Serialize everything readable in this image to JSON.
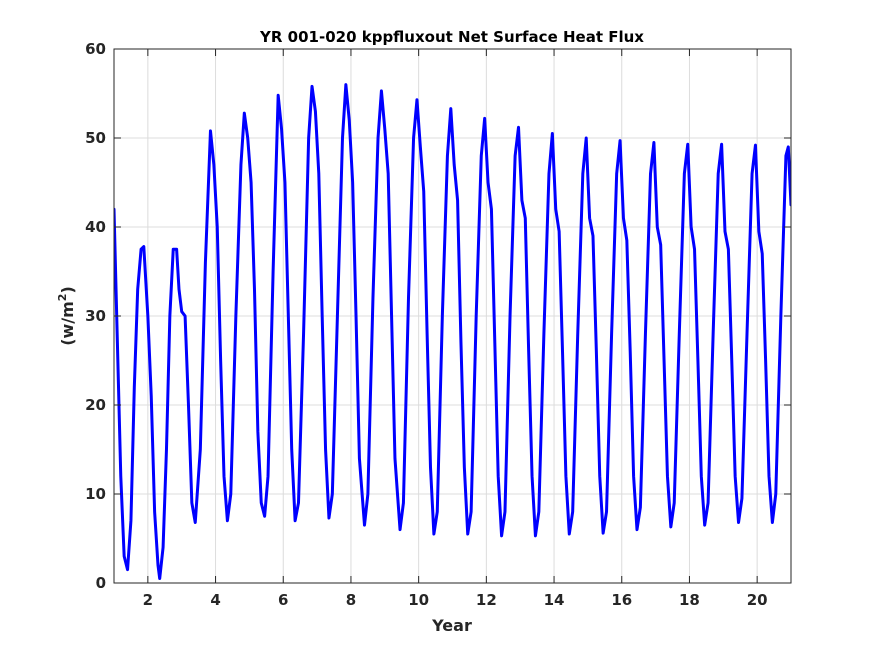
{
  "chart_data": {
    "type": "line",
    "title": "YR 001-020 kppfluxout Net Surface Heat Flux",
    "xlabel": "Year",
    "ylabel": "(w/m",
    "ylabel_superscript": "2",
    "ylabel_close": ")",
    "xlim": [
      1,
      21
    ],
    "ylim": [
      0,
      60
    ],
    "xticks": [
      2,
      4,
      6,
      8,
      10,
      12,
      14,
      16,
      18,
      20
    ],
    "yticks": [
      0,
      10,
      20,
      30,
      40,
      50,
      60
    ],
    "xtick_labels": [
      "2",
      "4",
      "6",
      "8",
      "10",
      "12",
      "14",
      "16",
      "18",
      "20"
    ],
    "ytick_labels": [
      "0",
      "10",
      "20",
      "30",
      "40",
      "50",
      "60"
    ],
    "grid": true,
    "series": [
      {
        "color": "#0000ff",
        "points": [
          [
            1.0,
            42.0
          ],
          [
            1.1,
            27.0
          ],
          [
            1.2,
            12.0
          ],
          [
            1.3,
            3.0
          ],
          [
            1.4,
            1.5
          ],
          [
            1.5,
            7.0
          ],
          [
            1.6,
            22.0
          ],
          [
            1.7,
            33.0
          ],
          [
            1.8,
            37.5
          ],
          [
            1.88,
            37.8
          ],
          [
            2.0,
            30.0
          ],
          [
            2.1,
            21.0
          ],
          [
            2.2,
            8.0
          ],
          [
            2.3,
            2.0
          ],
          [
            2.35,
            0.5
          ],
          [
            2.45,
            4.0
          ],
          [
            2.55,
            15.0
          ],
          [
            2.65,
            30.0
          ],
          [
            2.75,
            37.5
          ],
          [
            2.85,
            37.5
          ],
          [
            2.92,
            33.0
          ],
          [
            3.0,
            30.5
          ],
          [
            3.1,
            30.0
          ],
          [
            3.2,
            20.0
          ],
          [
            3.3,
            9.0
          ],
          [
            3.4,
            6.8
          ],
          [
            3.55,
            15.0
          ],
          [
            3.7,
            36.0
          ],
          [
            3.85,
            50.8
          ],
          [
            3.95,
            47.0
          ],
          [
            4.05,
            40.0
          ],
          [
            4.15,
            25.0
          ],
          [
            4.25,
            12.0
          ],
          [
            4.35,
            7.0
          ],
          [
            4.45,
            10.0
          ],
          [
            4.6,
            30.0
          ],
          [
            4.75,
            47.0
          ],
          [
            4.85,
            52.8
          ],
          [
            4.95,
            50.0
          ],
          [
            5.05,
            45.0
          ],
          [
            5.15,
            33.0
          ],
          [
            5.25,
            17.0
          ],
          [
            5.35,
            9.0
          ],
          [
            5.45,
            7.5
          ],
          [
            5.55,
            12.0
          ],
          [
            5.7,
            35.0
          ],
          [
            5.85,
            54.8
          ],
          [
            5.95,
            51.0
          ],
          [
            6.05,
            45.0
          ],
          [
            6.15,
            30.0
          ],
          [
            6.25,
            15.0
          ],
          [
            6.35,
            7.0
          ],
          [
            6.45,
            9.0
          ],
          [
            6.6,
            28.0
          ],
          [
            6.75,
            50.0
          ],
          [
            6.85,
            55.8
          ],
          [
            6.95,
            53.0
          ],
          [
            7.05,
            46.0
          ],
          [
            7.15,
            30.0
          ],
          [
            7.25,
            15.0
          ],
          [
            7.35,
            7.3
          ],
          [
            7.45,
            10.0
          ],
          [
            7.6,
            30.0
          ],
          [
            7.75,
            50.0
          ],
          [
            7.85,
            56.0
          ],
          [
            7.95,
            52.0
          ],
          [
            8.05,
            45.0
          ],
          [
            8.15,
            30.0
          ],
          [
            8.25,
            14.0
          ],
          [
            8.4,
            6.5
          ],
          [
            8.5,
            10.0
          ],
          [
            8.65,
            32.0
          ],
          [
            8.8,
            50.0
          ],
          [
            8.9,
            55.3
          ],
          [
            9.0,
            51.0
          ],
          [
            9.1,
            46.0
          ],
          [
            9.2,
            30.0
          ],
          [
            9.3,
            14.0
          ],
          [
            9.45,
            6.0
          ],
          [
            9.55,
            9.0
          ],
          [
            9.7,
            32.0
          ],
          [
            9.85,
            50.0
          ],
          [
            9.95,
            54.3
          ],
          [
            10.05,
            49.0
          ],
          [
            10.15,
            44.0
          ],
          [
            10.25,
            28.0
          ],
          [
            10.35,
            13.0
          ],
          [
            10.45,
            5.5
          ],
          [
            10.55,
            8.0
          ],
          [
            10.7,
            30.0
          ],
          [
            10.85,
            48.0
          ],
          [
            10.95,
            53.3
          ],
          [
            11.05,
            47.0
          ],
          [
            11.15,
            43.0
          ],
          [
            11.25,
            27.0
          ],
          [
            11.35,
            13.0
          ],
          [
            11.45,
            5.5
          ],
          [
            11.55,
            8.0
          ],
          [
            11.7,
            30.0
          ],
          [
            11.85,
            48.0
          ],
          [
            11.95,
            52.2
          ],
          [
            12.05,
            45.0
          ],
          [
            12.15,
            42.0
          ],
          [
            12.25,
            27.0
          ],
          [
            12.35,
            12.0
          ],
          [
            12.45,
            5.3
          ],
          [
            12.55,
            8.0
          ],
          [
            12.7,
            30.0
          ],
          [
            12.85,
            48.0
          ],
          [
            12.95,
            51.2
          ],
          [
            13.05,
            43.0
          ],
          [
            13.15,
            41.0
          ],
          [
            13.25,
            26.0
          ],
          [
            13.35,
            12.0
          ],
          [
            13.45,
            5.3
          ],
          [
            13.55,
            8.0
          ],
          [
            13.7,
            28.0
          ],
          [
            13.85,
            46.0
          ],
          [
            13.95,
            50.5
          ],
          [
            14.05,
            42.0
          ],
          [
            14.15,
            39.5
          ],
          [
            14.25,
            26.0
          ],
          [
            14.35,
            12.0
          ],
          [
            14.45,
            5.5
          ],
          [
            14.55,
            8.0
          ],
          [
            14.7,
            28.0
          ],
          [
            14.85,
            46.0
          ],
          [
            14.95,
            50.0
          ],
          [
            15.05,
            41.0
          ],
          [
            15.15,
            39.0
          ],
          [
            15.25,
            26.0
          ],
          [
            15.35,
            12.0
          ],
          [
            15.45,
            5.6
          ],
          [
            15.55,
            8.0
          ],
          [
            15.7,
            28.0
          ],
          [
            15.85,
            46.0
          ],
          [
            15.95,
            49.7
          ],
          [
            16.05,
            41.0
          ],
          [
            16.15,
            38.5
          ],
          [
            16.25,
            26.0
          ],
          [
            16.35,
            12.0
          ],
          [
            16.45,
            6.0
          ],
          [
            16.55,
            8.5
          ],
          [
            16.7,
            28.0
          ],
          [
            16.85,
            46.0
          ],
          [
            16.95,
            49.5
          ],
          [
            17.05,
            40.0
          ],
          [
            17.15,
            38.0
          ],
          [
            17.25,
            25.0
          ],
          [
            17.35,
            12.0
          ],
          [
            17.45,
            6.3
          ],
          [
            17.55,
            9.0
          ],
          [
            17.7,
            28.0
          ],
          [
            17.85,
            46.0
          ],
          [
            17.95,
            49.3
          ],
          [
            18.05,
            40.0
          ],
          [
            18.15,
            37.5
          ],
          [
            18.25,
            25.0
          ],
          [
            18.35,
            12.0
          ],
          [
            18.45,
            6.5
          ],
          [
            18.55,
            9.0
          ],
          [
            18.7,
            28.0
          ],
          [
            18.85,
            46.0
          ],
          [
            18.95,
            49.3
          ],
          [
            19.05,
            39.5
          ],
          [
            19.15,
            37.5
          ],
          [
            19.25,
            25.0
          ],
          [
            19.35,
            12.0
          ],
          [
            19.45,
            6.8
          ],
          [
            19.55,
            9.5
          ],
          [
            19.7,
            28.0
          ],
          [
            19.85,
            46.0
          ],
          [
            19.95,
            49.2
          ],
          [
            20.05,
            39.5
          ],
          [
            20.15,
            37.0
          ],
          [
            20.25,
            25.0
          ],
          [
            20.35,
            12.0
          ],
          [
            20.45,
            6.8
          ],
          [
            20.55,
            10.0
          ],
          [
            20.7,
            30.0
          ],
          [
            20.85,
            48.0
          ],
          [
            20.92,
            49.0
          ],
          [
            21.0,
            42.5
          ]
        ]
      }
    ]
  }
}
